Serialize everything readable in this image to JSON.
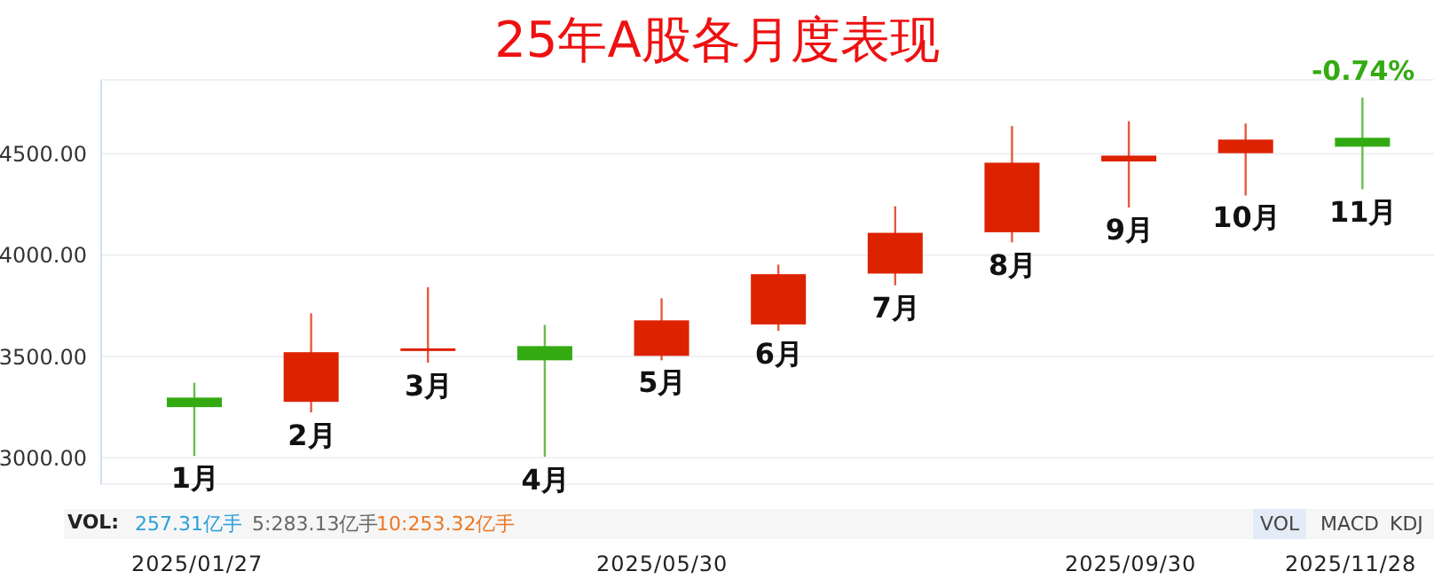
{
  "chart_data": {
    "type": "candlestick",
    "title": "25年A股各月度表现",
    "categories": [
      "1月",
      "2月",
      "3月",
      "4月",
      "5月",
      "6月",
      "7月",
      "8月",
      "9月",
      "10月",
      "11月"
    ],
    "ohlc": [
      [
        3297,
        3370,
        3009,
        3250
      ],
      [
        3276,
        3713,
        3224,
        3521
      ],
      [
        3535,
        3842,
        3469,
        3540
      ],
      [
        3551,
        3656,
        3005,
        3481
      ],
      [
        3503,
        3787,
        3481,
        3678
      ],
      [
        3658,
        3953,
        3626,
        3906
      ],
      [
        3909,
        4241,
        3851,
        4110
      ],
      [
        4113,
        4637,
        4063,
        4456
      ],
      [
        4462,
        4661,
        4235,
        4491
      ],
      [
        4503,
        4649,
        4294,
        4570
      ],
      [
        4579,
        4777,
        4325,
        4535
      ]
    ],
    "colors": [
      "#33aa11",
      "#dd2200",
      "#dd2200",
      "#33aa11",
      "#dd2200",
      "#dd2200",
      "#dd2200",
      "#dd2200",
      "#dd2200",
      "#dd2200",
      "#33aa11"
    ],
    "ylim": [
      2870,
      4865
    ],
    "yticks": [
      {
        "value": 3000,
        "label": "3000.00"
      },
      {
        "value": 3500,
        "label": "3500.00"
      },
      {
        "value": 4000,
        "label": "4000.00"
      },
      {
        "value": 4500,
        "label": "4500.00"
      }
    ],
    "grid": "y",
    "annotations": [
      {
        "text": "-0.74%",
        "x": "11月",
        "y": 4777
      },
      "2025/01/27",
      "2025/05/30",
      "2025/09/30",
      "2025/11/28",
      "VOL:",
      "257.31亿手",
      "5:283.13亿手",
      "10:253.32亿手",
      "VOL",
      "MACD",
      "KDJ"
    ]
  }
}
